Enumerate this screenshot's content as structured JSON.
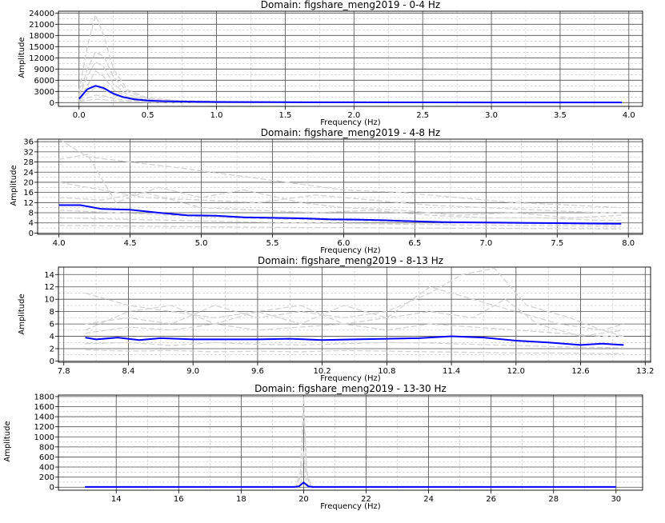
{
  "figure": {
    "background": "#ffffff"
  },
  "style": {
    "main_color": "#0000ff",
    "trace_color": "#d3d3d3",
    "major_grid": "#4d4d4d",
    "minor_grid": "#c8c8c8"
  },
  "chart_data": [
    {
      "type": "line",
      "title": "Domain: figshare_meng2019 - 0-4 Hz",
      "xlabel": "Frequency (Hz)",
      "ylabel": "Amplitude",
      "xlim": [
        -0.15,
        4.1
      ],
      "ylim": [
        -1000,
        24500
      ],
      "xticks": [
        0.0,
        0.5,
        1.0,
        1.5,
        2.0,
        2.5,
        3.0,
        3.5,
        4.0
      ],
      "xtick_labels": [
        "0.0",
        "0.5",
        "1.0",
        "1.5",
        "2.0",
        "2.5",
        "3.0",
        "3.5",
        "4.0"
      ],
      "yticks": [
        0,
        3000,
        6000,
        9000,
        12000,
        15000,
        18000,
        21000,
        24000
      ],
      "ytick_labels": [
        "0",
        "3000",
        "6000",
        "9000",
        "12000",
        "15000",
        "18000",
        "21000",
        "24000"
      ],
      "grid": true,
      "series": [
        {
          "style": "mean",
          "x": [
            0.0,
            0.06,
            0.12,
            0.18,
            0.25,
            0.32,
            0.4,
            0.5,
            0.6,
            0.8,
            1.0,
            1.5,
            2.0,
            2.5,
            3.0,
            3.5,
            3.95
          ],
          "y": [
            1000,
            3600,
            4500,
            3900,
            2400,
            1500,
            900,
            550,
            400,
            260,
            180,
            120,
            90,
            70,
            60,
            50,
            40
          ]
        },
        {
          "style": "trace",
          "x": [
            0.0,
            0.06,
            0.12,
            0.18,
            0.25,
            0.35,
            0.5,
            0.7,
            1.0,
            1.5,
            2.0,
            3.0,
            3.95
          ],
          "y": [
            3000,
            15000,
            23500,
            18000,
            9000,
            3500,
            1200,
            600,
            300,
            150,
            100,
            60,
            40
          ]
        },
        {
          "style": "trace",
          "x": [
            0.0,
            0.06,
            0.12,
            0.18,
            0.25,
            0.35,
            0.5,
            0.7,
            1.0,
            1.5,
            2.0,
            3.0,
            3.95
          ],
          "y": [
            2000,
            9000,
            13500,
            12500,
            7000,
            3000,
            1000,
            500,
            250,
            130,
            90,
            50,
            30
          ]
        },
        {
          "style": "trace",
          "x": [
            0.0,
            0.06,
            0.12,
            0.18,
            0.25,
            0.35,
            0.5,
            0.7,
            1.0,
            1.5,
            2.0,
            3.0,
            3.95
          ],
          "y": [
            1500,
            7000,
            11000,
            9500,
            5000,
            2200,
            800,
            400,
            200,
            110,
            80,
            45,
            30
          ]
        },
        {
          "style": "trace",
          "x": [
            0.0,
            0.06,
            0.12,
            0.18,
            0.25,
            0.35,
            0.5,
            0.7,
            1.0,
            1.5,
            2.0,
            3.0,
            3.95
          ],
          "y": [
            800,
            4500,
            8500,
            7000,
            3500,
            1600,
            600,
            350,
            180,
            100,
            70,
            40,
            25
          ]
        },
        {
          "style": "trace",
          "x": [
            0.0,
            0.06,
            0.12,
            0.18,
            0.25,
            0.35,
            0.5,
            0.7,
            1.0,
            1.5,
            2.0,
            3.0,
            3.95
          ],
          "y": [
            500,
            2500,
            4000,
            3500,
            2000,
            1000,
            400,
            250,
            140,
            80,
            60,
            35,
            20
          ]
        },
        {
          "style": "trace",
          "x": [
            0.0,
            0.06,
            0.12,
            0.18,
            0.25,
            0.35,
            0.5,
            0.7,
            1.0,
            1.5,
            2.0,
            3.0,
            3.95
          ],
          "y": [
            300,
            1200,
            2000,
            1800,
            1100,
            600,
            300,
            180,
            100,
            60,
            45,
            30,
            20
          ]
        },
        {
          "style": "trace",
          "x": [
            0.0,
            0.06,
            0.12,
            0.18,
            0.25,
            0.35,
            0.5,
            0.7,
            1.0,
            1.5,
            2.0,
            3.0,
            3.95
          ],
          "y": [
            200,
            600,
            900,
            800,
            500,
            300,
            150,
            100,
            70,
            45,
            35,
            25,
            15
          ]
        }
      ]
    },
    {
      "type": "line",
      "title": "Domain: figshare_meng2019 - 4-8 Hz",
      "xlabel": "Frequency (Hz)",
      "ylabel": "Amplitude",
      "xlim": [
        3.85,
        8.1
      ],
      "ylim": [
        -0.5,
        37
      ],
      "xticks": [
        4.0,
        4.5,
        5.0,
        5.5,
        6.0,
        6.5,
        7.0,
        7.5,
        8.0
      ],
      "xtick_labels": [
        "4.0",
        "4.5",
        "5.0",
        "5.5",
        "6.0",
        "6.5",
        "7.0",
        "7.5",
        "8.0"
      ],
      "yticks": [
        0,
        4,
        8,
        12,
        16,
        20,
        24,
        28,
        32,
        36
      ],
      "ytick_labels": [
        "0",
        "4",
        "8",
        "12",
        "16",
        "20",
        "24",
        "28",
        "32",
        "36"
      ],
      "grid": true,
      "series": [
        {
          "style": "mean",
          "x": [
            4.0,
            4.15,
            4.3,
            4.5,
            4.7,
            4.9,
            5.1,
            5.3,
            5.5,
            5.7,
            5.9,
            6.1,
            6.3,
            6.5,
            6.7,
            6.9,
            7.1,
            7.3,
            7.5,
            7.7,
            7.95
          ],
          "y": [
            11.0,
            11.0,
            9.5,
            9.2,
            8.0,
            7.0,
            6.8,
            6.2,
            6.0,
            5.8,
            5.4,
            5.3,
            5.0,
            4.6,
            4.3,
            4.2,
            4.1,
            4.0,
            3.9,
            3.8,
            3.7
          ]
        },
        {
          "style": "trace",
          "x": [
            4.0,
            4.2,
            4.5,
            4.8,
            5.2,
            5.6,
            6.0,
            6.4,
            6.8,
            7.2,
            7.6,
            7.95
          ],
          "y": [
            37,
            30,
            28,
            26,
            23,
            20,
            17,
            16,
            14,
            12,
            11,
            10
          ]
        },
        {
          "style": "trace",
          "x": [
            4.0,
            4.2,
            4.4,
            4.7,
            5.0,
            5.3,
            5.7,
            6.0,
            6.4,
            6.8,
            7.2,
            7.6,
            7.95
          ],
          "y": [
            29,
            31,
            12,
            18,
            14,
            17,
            12,
            10,
            9,
            7,
            8,
            6,
            7
          ]
        },
        {
          "style": "trace",
          "x": [
            4.0,
            4.3,
            4.6,
            5.0,
            5.4,
            5.8,
            6.2,
            6.6,
            7.0,
            7.4,
            7.8,
            7.95
          ],
          "y": [
            20,
            17,
            14,
            13,
            12,
            15,
            13,
            11,
            10,
            9,
            8,
            8
          ]
        },
        {
          "style": "trace",
          "x": [
            4.0,
            4.3,
            4.6,
            5.0,
            5.4,
            5.8,
            6.2,
            6.6,
            7.0,
            7.4,
            7.8,
            7.95
          ],
          "y": [
            14,
            13,
            16,
            10,
            9,
            8,
            9,
            7,
            6,
            6,
            5,
            5
          ]
        },
        {
          "style": "trace",
          "x": [
            4.0,
            4.4,
            4.8,
            5.2,
            5.6,
            6.0,
            6.4,
            6.8,
            7.2,
            7.6,
            7.95
          ],
          "y": [
            9,
            8,
            7,
            6,
            5.5,
            5,
            4.5,
            4,
            3.8,
            3.5,
            3.3
          ]
        },
        {
          "style": "trace",
          "x": [
            4.0,
            4.4,
            4.8,
            5.2,
            5.6,
            6.0,
            6.4,
            6.8,
            7.2,
            7.6,
            7.95
          ],
          "y": [
            6,
            5.5,
            5,
            4.5,
            4,
            3.8,
            3.5,
            3.2,
            3,
            2.8,
            2.6
          ]
        },
        {
          "style": "trace",
          "x": [
            4.0,
            4.4,
            4.8,
            5.2,
            5.6,
            6.0,
            6.4,
            6.8,
            7.2,
            7.6,
            7.95
          ],
          "y": [
            3,
            2.8,
            2.6,
            2.4,
            2.2,
            2.1,
            2,
            1.9,
            1.8,
            1.7,
            1.6
          ]
        }
      ]
    },
    {
      "type": "line",
      "title": "Domain: figshare_meng2019 - 8-13 Hz",
      "xlabel": "Frequency (Hz)",
      "ylabel": "Amplitude",
      "xlim": [
        7.75,
        13.25
      ],
      "ylim": [
        -0.2,
        15.2
      ],
      "xticks": [
        7.8,
        8.4,
        9.0,
        9.6,
        10.2,
        10.8,
        11.4,
        12.0,
        12.6,
        13.2
      ],
      "xtick_labels": [
        "7.8",
        "8.4",
        "9.0",
        "9.6",
        "10.2",
        "10.8",
        "11.4",
        "12.0",
        "12.6",
        "13.2"
      ],
      "yticks": [
        0,
        2,
        4,
        6,
        8,
        10,
        12,
        14
      ],
      "ytick_labels": [
        "0",
        "2",
        "4",
        "6",
        "8",
        "10",
        "12",
        "14"
      ],
      "grid": true,
      "series": [
        {
          "style": "mean",
          "x": [
            8.0,
            8.1,
            8.3,
            8.5,
            8.7,
            9.0,
            9.3,
            9.6,
            9.9,
            10.2,
            10.5,
            10.8,
            11.1,
            11.4,
            11.7,
            12.0,
            12.3,
            12.6,
            12.8,
            13.0
          ],
          "y": [
            3.8,
            3.5,
            3.8,
            3.4,
            3.7,
            3.5,
            3.5,
            3.5,
            3.6,
            3.4,
            3.5,
            3.6,
            3.7,
            4.0,
            3.8,
            3.3,
            3.0,
            2.6,
            2.8,
            2.6
          ]
        },
        {
          "style": "trace",
          "x": [
            8.0,
            8.4,
            8.8,
            9.2,
            9.6,
            10.0,
            10.4,
            10.8,
            11.2,
            11.5,
            11.8,
            12.1,
            12.5,
            12.8,
            13.0
          ],
          "y": [
            6,
            7,
            6,
            9,
            7,
            8,
            7,
            8,
            11,
            14,
            15,
            9,
            7,
            5,
            6
          ]
        },
        {
          "style": "trace",
          "x": [
            8.0,
            8.4,
            8.8,
            9.2,
            9.6,
            10.0,
            10.4,
            10.8,
            11.2,
            11.6,
            12.0,
            12.4,
            12.8,
            13.0
          ],
          "y": [
            11,
            9,
            8,
            7,
            8,
            6,
            9,
            7,
            12,
            10,
            8,
            6,
            5,
            4
          ]
        },
        {
          "style": "trace",
          "x": [
            8.0,
            8.4,
            8.8,
            9.2,
            9.6,
            10.0,
            10.4,
            10.8,
            11.2,
            11.6,
            11.9,
            12.2,
            12.6,
            13.0
          ],
          "y": [
            5,
            8,
            9,
            6,
            8,
            9,
            6,
            7,
            8,
            7,
            10,
            6,
            4,
            5
          ]
        },
        {
          "style": "trace",
          "x": [
            8.0,
            8.4,
            8.8,
            9.2,
            9.6,
            10.0,
            10.4,
            10.8,
            11.2,
            11.6,
            12.0,
            12.4,
            12.8,
            13.0
          ],
          "y": [
            4.5,
            5.5,
            5,
            6,
            5,
            5.5,
            6,
            5,
            6,
            5.5,
            5,
            4.5,
            4,
            4
          ]
        },
        {
          "style": "trace",
          "x": [
            8.0,
            8.4,
            8.8,
            9.2,
            9.6,
            10.0,
            10.4,
            10.8,
            11.2,
            11.6,
            12.0,
            12.4,
            12.8,
            13.0
          ],
          "y": [
            2.8,
            3,
            2.5,
            3,
            2.7,
            2.6,
            2.8,
            3,
            2.9,
            2.7,
            2.5,
            2.3,
            2.2,
            2.1
          ]
        },
        {
          "style": "trace",
          "x": [
            8.0,
            8.4,
            8.8,
            9.2,
            9.6,
            10.0,
            10.4,
            10.8,
            11.2,
            11.6,
            12.0,
            12.4,
            12.8,
            13.0
          ],
          "y": [
            1.8,
            1.6,
            1.7,
            1.5,
            1.6,
            1.5,
            1.7,
            1.6,
            1.5,
            1.4,
            1.3,
            1.3,
            1.2,
            1.2
          ]
        }
      ]
    },
    {
      "type": "line",
      "title": "Domain: figshare_meng2019 - 13-30 Hz",
      "xlabel": "Frequency (Hz)",
      "ylabel": "Amplitude",
      "xlim": [
        12.15,
        30.85
      ],
      "ylim": [
        -60,
        1830
      ],
      "xticks": [
        14,
        16,
        18,
        20,
        22,
        24,
        26,
        28,
        30
      ],
      "xtick_labels": [
        "14",
        "16",
        "18",
        "20",
        "22",
        "24",
        "26",
        "28",
        "30"
      ],
      "yticks": [
        0,
        200,
        400,
        600,
        800,
        1000,
        1200,
        1400,
        1600,
        1800
      ],
      "ytick_labels": [
        "0",
        "200",
        "400",
        "600",
        "800",
        "1000",
        "1200",
        "1400",
        "1600",
        "1800"
      ],
      "grid": true,
      "series": [
        {
          "style": "mean",
          "x": [
            13.0,
            19.7,
            19.85,
            20.0,
            20.15,
            20.3,
            30.0
          ],
          "y": [
            5,
            5,
            15,
            95,
            15,
            5,
            5
          ]
        },
        {
          "style": "trace",
          "x": [
            13.0,
            19.75,
            19.9,
            20.0,
            20.1,
            20.25,
            30.0
          ],
          "y": [
            5,
            5,
            300,
            1800,
            300,
            5,
            5
          ]
        },
        {
          "style": "trace",
          "x": [
            13.0,
            19.75,
            19.9,
            20.0,
            20.1,
            20.25,
            30.0
          ],
          "y": [
            4,
            4,
            200,
            1500,
            200,
            4,
            4
          ]
        },
        {
          "style": "trace",
          "x": [
            13.0,
            19.8,
            19.92,
            20.0,
            20.08,
            20.2,
            30.0
          ],
          "y": [
            3,
            3,
            100,
            700,
            100,
            3,
            3
          ]
        }
      ]
    }
  ]
}
